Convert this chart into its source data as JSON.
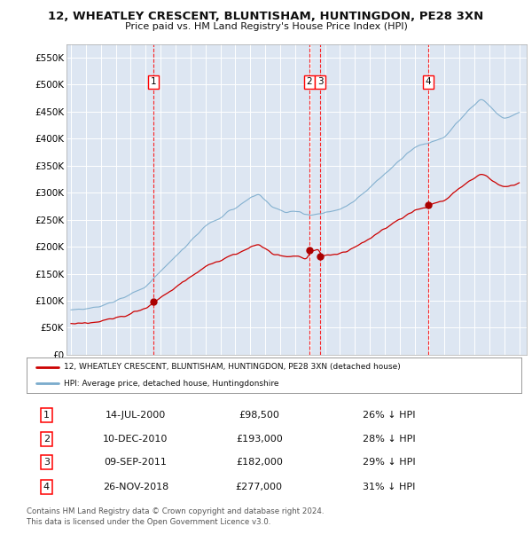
{
  "title": "12, WHEATLEY CRESCENT, BLUNTISHAM, HUNTINGDON, PE28 3XN",
  "subtitle": "Price paid vs. HM Land Registry's House Price Index (HPI)",
  "background_color": "#dde6f2",
  "ylabel": "",
  "ylim": [
    0,
    575000
  ],
  "yticks": [
    0,
    50000,
    100000,
    150000,
    200000,
    250000,
    300000,
    350000,
    400000,
    450000,
    500000,
    550000
  ],
  "ytick_labels": [
    "£0",
    "£50K",
    "£100K",
    "£150K",
    "£200K",
    "£250K",
    "£300K",
    "£350K",
    "£400K",
    "£450K",
    "£500K",
    "£550K"
  ],
  "xlim_start": 1994.7,
  "xlim_end": 2025.5,
  "sale_dates": [
    2000.537,
    2010.942,
    2011.689,
    2018.899
  ],
  "sale_prices": [
    98500,
    193000,
    182000,
    277000
  ],
  "sale_labels": [
    "1",
    "2",
    "3",
    "4"
  ],
  "legend_line1": "12, WHEATLEY CRESCENT, BLUNTISHAM, HUNTINGDON, PE28 3XN (detached house)",
  "legend_line2": "HPI: Average price, detached house, Huntingdonshire",
  "table_data": [
    [
      "1",
      "14-JUL-2000",
      "£98,500",
      "26% ↓ HPI"
    ],
    [
      "2",
      "10-DEC-2010",
      "£193,000",
      "28% ↓ HPI"
    ],
    [
      "3",
      "09-SEP-2011",
      "£182,000",
      "29% ↓ HPI"
    ],
    [
      "4",
      "26-NOV-2018",
      "£277,000",
      "31% ↓ HPI"
    ]
  ],
  "footer": "Contains HM Land Registry data © Crown copyright and database right 2024.\nThis data is licensed under the Open Government Licence v3.0.",
  "red_color": "#cc0000",
  "blue_color": "#7aabcc",
  "dot_color": "#aa0000"
}
